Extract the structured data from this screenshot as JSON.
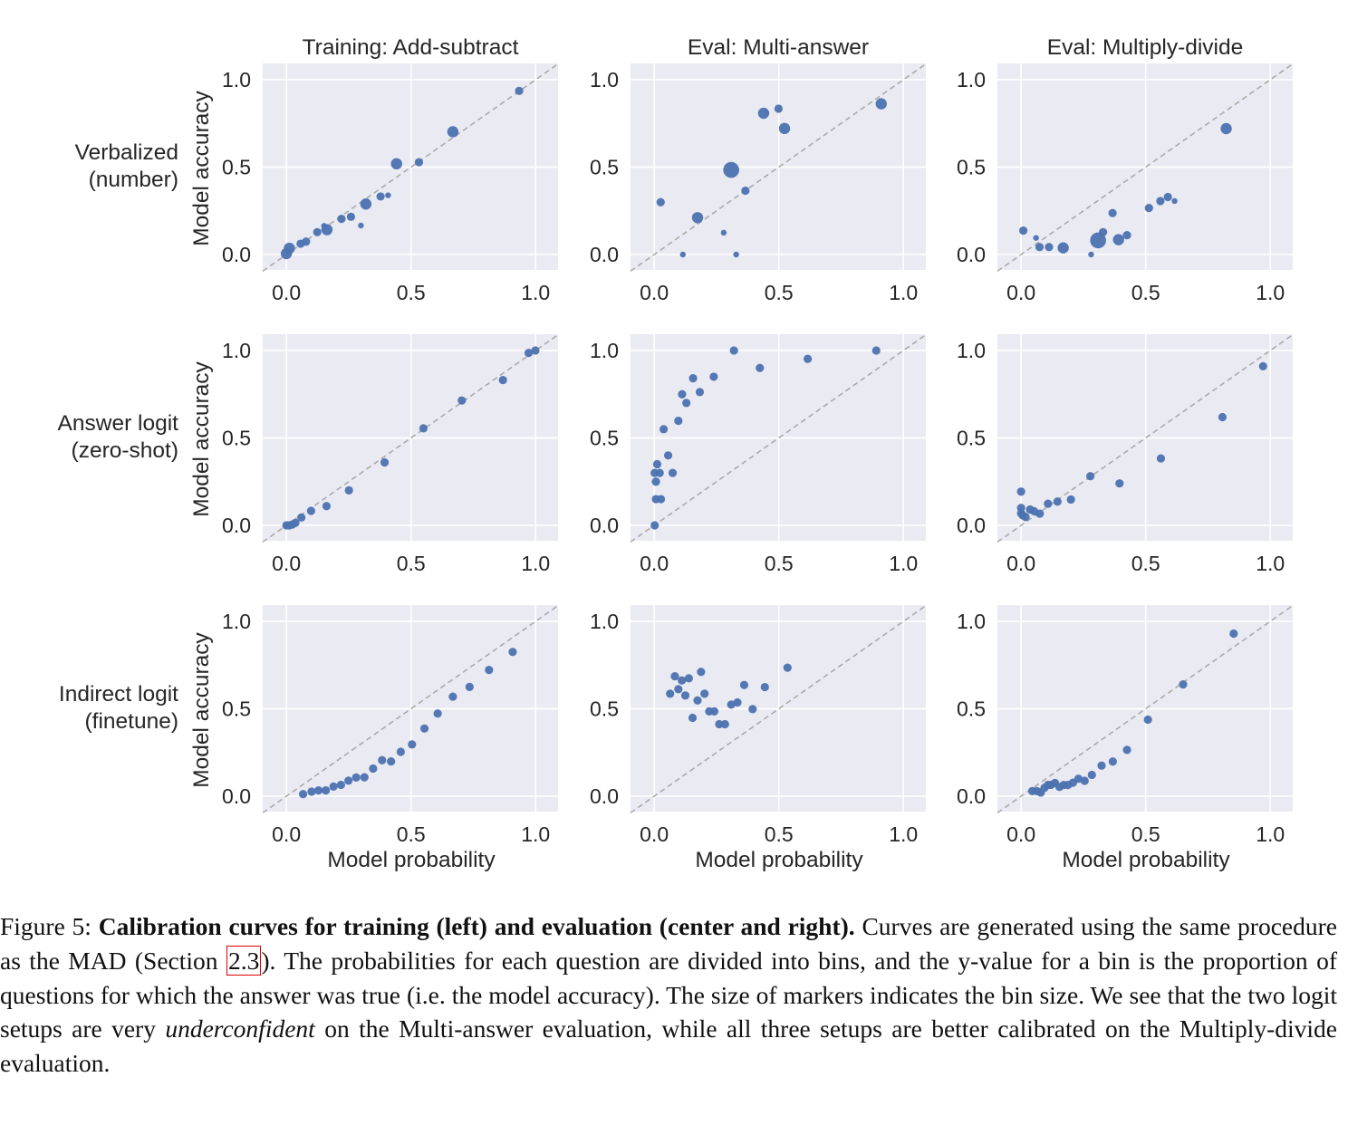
{
  "chart_data": {
    "type": "scatter",
    "layout": "3x3 grid",
    "column_titles": [
      "Training: Add-subtract",
      "Eval: Multi-answer",
      "Eval: Multiply-divide"
    ],
    "row_labels": [
      [
        "Verbalized",
        "(number)"
      ],
      [
        "Answer logit",
        "(zero-shot)"
      ],
      [
        "Indirect logit",
        "(finetune)"
      ]
    ],
    "ylabel": "Model accuracy",
    "xlabel": "Model probability",
    "xlim": [
      -0.095,
      1.09
    ],
    "ylim": [
      -0.088,
      1.093
    ],
    "xticks": [
      "0.0",
      "0.5",
      "1.0"
    ],
    "yticks": [
      "0.0",
      "0.5",
      "1.0"
    ],
    "xtick_values": [
      0,
      0.5,
      1.0
    ],
    "ytick_values": [
      0,
      0.5,
      1.0
    ],
    "grid": true,
    "reference_line": "y = x (dashed gray)",
    "marker_color": "#4c72b0",
    "background_color": "#eaeaf2",
    "marker_size_meaning": "bin size (S, M, L, XL)",
    "panels": [
      {
        "row": 0,
        "col": 0,
        "points": [
          [
            0,
            0.005,
            "L"
          ],
          [
            0.012,
            0.036,
            "L"
          ],
          [
            0.057,
            0.062,
            "M"
          ],
          [
            0.079,
            0.074,
            "M"
          ],
          [
            0.124,
            0.128,
            "M"
          ],
          [
            0.151,
            0.164,
            "S"
          ],
          [
            0.163,
            0.142,
            "L"
          ],
          [
            0.221,
            0.204,
            "M"
          ],
          [
            0.259,
            0.216,
            "M"
          ],
          [
            0.299,
            0.166,
            "S"
          ],
          [
            0.319,
            0.289,
            "L"
          ],
          [
            0.378,
            0.332,
            "M"
          ],
          [
            0.408,
            0.339,
            "S"
          ],
          [
            0.442,
            0.519,
            "L"
          ],
          [
            0.532,
            0.528,
            "M"
          ],
          [
            0.668,
            0.702,
            "L"
          ],
          [
            0.934,
            0.936,
            "M"
          ]
        ]
      },
      {
        "row": 0,
        "col": 1,
        "points": [
          [
            0.026,
            0.299,
            "M"
          ],
          [
            0.115,
            0.0,
            "S"
          ],
          [
            0.174,
            0.211,
            "L"
          ],
          [
            0.279,
            0.125,
            "S"
          ],
          [
            0.309,
            0.484,
            "XL"
          ],
          [
            0.329,
            0.0,
            "S"
          ],
          [
            0.366,
            0.365,
            "M"
          ],
          [
            0.439,
            0.808,
            "L"
          ],
          [
            0.499,
            0.834,
            "M"
          ],
          [
            0.523,
            0.721,
            "L"
          ],
          [
            0.911,
            0.862,
            "L"
          ]
        ]
      },
      {
        "row": 0,
        "col": 2,
        "points": [
          [
            0.009,
            0.137,
            "M"
          ],
          [
            0.06,
            0.095,
            "S"
          ],
          [
            0.074,
            0.043,
            "M"
          ],
          [
            0.112,
            0.043,
            "M"
          ],
          [
            0.169,
            0.038,
            "L"
          ],
          [
            0.281,
            0.0,
            "S"
          ],
          [
            0.309,
            0.081,
            "XL"
          ],
          [
            0.329,
            0.128,
            "M"
          ],
          [
            0.367,
            0.237,
            "M"
          ],
          [
            0.391,
            0.085,
            "L"
          ],
          [
            0.425,
            0.111,
            "M"
          ],
          [
            0.513,
            0.266,
            "M"
          ],
          [
            0.559,
            0.306,
            "M"
          ],
          [
            0.589,
            0.329,
            "M"
          ],
          [
            0.616,
            0.306,
            "S"
          ],
          [
            0.823,
            0.72,
            "L"
          ]
        ]
      },
      {
        "row": 1,
        "col": 0,
        "points": [
          [
            0,
            0,
            "M"
          ],
          [
            0.012,
            0,
            "M"
          ],
          [
            0.024,
            0.005,
            "M"
          ],
          [
            0.036,
            0.014,
            "M"
          ],
          [
            0.06,
            0.045,
            "M"
          ],
          [
            0.099,
            0.083,
            "M"
          ],
          [
            0.161,
            0.11,
            "M"
          ],
          [
            0.251,
            0.2,
            "M"
          ],
          [
            0.394,
            0.36,
            "M"
          ],
          [
            0.55,
            0.555,
            "M"
          ],
          [
            0.704,
            0.714,
            "M"
          ],
          [
            0.869,
            0.831,
            "M"
          ],
          [
            0.972,
            0.986,
            "M"
          ],
          [
            0.999,
            1.0,
            "M"
          ]
        ]
      },
      {
        "row": 1,
        "col": 1,
        "points": [
          [
            0.002,
            0,
            "M"
          ],
          [
            0.007,
            0.15,
            "M"
          ],
          [
            0.027,
            0.15,
            "M"
          ],
          [
            0.007,
            0.25,
            "M"
          ],
          [
            0.002,
            0.3,
            "M"
          ],
          [
            0.022,
            0.3,
            "M"
          ],
          [
            0.012,
            0.35,
            "M"
          ],
          [
            0.074,
            0.3,
            "M"
          ],
          [
            0.056,
            0.4,
            "M"
          ],
          [
            0.038,
            0.55,
            "M"
          ],
          [
            0.097,
            0.598,
            "M"
          ],
          [
            0.129,
            0.7,
            "M"
          ],
          [
            0.112,
            0.75,
            "M"
          ],
          [
            0.183,
            0.762,
            "M"
          ],
          [
            0.156,
            0.841,
            "M"
          ],
          [
            0.239,
            0.85,
            "M"
          ],
          [
            0.32,
            1.0,
            "M"
          ],
          [
            0.424,
            0.9,
            "M"
          ],
          [
            0.616,
            0.952,
            "M"
          ],
          [
            0.891,
            1.0,
            "M"
          ]
        ]
      },
      {
        "row": 1,
        "col": 2,
        "points": [
          [
            0,
            0.193,
            "M"
          ],
          [
            0,
            0.1,
            "M"
          ],
          [
            0,
            0.069,
            "M"
          ],
          [
            0.007,
            0.057,
            "M"
          ],
          [
            0.018,
            0.048,
            "M"
          ],
          [
            0.036,
            0.091,
            "M"
          ],
          [
            0.052,
            0.081,
            "M"
          ],
          [
            0.075,
            0.067,
            "M"
          ],
          [
            0.108,
            0.124,
            "M"
          ],
          [
            0.146,
            0.136,
            "M"
          ],
          [
            0.2,
            0.148,
            "M"
          ],
          [
            0.278,
            0.281,
            "M"
          ],
          [
            0.395,
            0.24,
            "M"
          ],
          [
            0.561,
            0.383,
            "M"
          ],
          [
            0.808,
            0.619,
            "M"
          ],
          [
            0.971,
            0.91,
            "M"
          ]
        ]
      },
      {
        "row": 2,
        "col": 0,
        "points": [
          [
            0.067,
            0.012,
            "M"
          ],
          [
            0.101,
            0.026,
            "M"
          ],
          [
            0.129,
            0.033,
            "M"
          ],
          [
            0.158,
            0.033,
            "M"
          ],
          [
            0.189,
            0.055,
            "M"
          ],
          [
            0.219,
            0.065,
            "M"
          ],
          [
            0.249,
            0.089,
            "M"
          ],
          [
            0.28,
            0.107,
            "M"
          ],
          [
            0.313,
            0.108,
            "M"
          ],
          [
            0.348,
            0.158,
            "M"
          ],
          [
            0.384,
            0.206,
            "M"
          ],
          [
            0.42,
            0.199,
            "M"
          ],
          [
            0.459,
            0.254,
            "M"
          ],
          [
            0.504,
            0.296,
            "M"
          ],
          [
            0.554,
            0.387,
            "M"
          ],
          [
            0.607,
            0.473,
            "M"
          ],
          [
            0.668,
            0.569,
            "M"
          ],
          [
            0.735,
            0.625,
            "M"
          ],
          [
            0.813,
            0.722,
            "M"
          ],
          [
            0.908,
            0.825,
            "M"
          ]
        ]
      },
      {
        "row": 2,
        "col": 1,
        "points": [
          [
            0.064,
            0.586,
            "M"
          ],
          [
            0.083,
            0.686,
            "M"
          ],
          [
            0.097,
            0.612,
            "M"
          ],
          [
            0.111,
            0.662,
            "M"
          ],
          [
            0.125,
            0.576,
            "M"
          ],
          [
            0.139,
            0.674,
            "M"
          ],
          [
            0.154,
            0.448,
            "M"
          ],
          [
            0.174,
            0.548,
            "M"
          ],
          [
            0.188,
            0.711,
            "M"
          ],
          [
            0.202,
            0.586,
            "M"
          ],
          [
            0.221,
            0.485,
            "M"
          ],
          [
            0.241,
            0.485,
            "M"
          ],
          [
            0.261,
            0.412,
            "M"
          ],
          [
            0.284,
            0.412,
            "M"
          ],
          [
            0.309,
            0.524,
            "M"
          ],
          [
            0.334,
            0.536,
            "M"
          ],
          [
            0.361,
            0.636,
            "M"
          ],
          [
            0.395,
            0.498,
            "M"
          ],
          [
            0.444,
            0.624,
            "M"
          ],
          [
            0.535,
            0.735,
            "M"
          ]
        ]
      },
      {
        "row": 2,
        "col": 2,
        "points": [
          [
            0.045,
            0.029,
            "M"
          ],
          [
            0.063,
            0.029,
            "M"
          ],
          [
            0.079,
            0.021,
            "M"
          ],
          [
            0.094,
            0.048,
            "M"
          ],
          [
            0.108,
            0.065,
            "M"
          ],
          [
            0.12,
            0.065,
            "M"
          ],
          [
            0.136,
            0.076,
            "M"
          ],
          [
            0.154,
            0.053,
            "M"
          ],
          [
            0.171,
            0.064,
            "M"
          ],
          [
            0.188,
            0.064,
            "M"
          ],
          [
            0.208,
            0.077,
            "M"
          ],
          [
            0.23,
            0.1,
            "M"
          ],
          [
            0.255,
            0.088,
            "M"
          ],
          [
            0.284,
            0.122,
            "M"
          ],
          [
            0.323,
            0.175,
            "M"
          ],
          [
            0.368,
            0.198,
            "M"
          ],
          [
            0.425,
            0.265,
            "M"
          ],
          [
            0.509,
            0.438,
            "M"
          ],
          [
            0.65,
            0.639,
            "M"
          ],
          [
            0.853,
            0.93,
            "M"
          ]
        ]
      }
    ]
  },
  "caption": {
    "label": "Figure 5:",
    "bold_title": "Calibration curves for training (left) and evaluation (center and right).",
    "text_1": "Curves are generated using the same procedure as the MAD (Section",
    "ref": "2.3",
    "text_2": "). The probabilities for each question are divided into bins, and the y-value for a bin is the proportion of questions for which the answer was true (i.e. the model accuracy). The size of markers indicates the bin size. We see that the two logit setups are very",
    "italic_word": "underconfident",
    "text_3": "on the Multi-answer evaluation, while all three setups are better calibrated on the Multiply-divide evaluation."
  }
}
